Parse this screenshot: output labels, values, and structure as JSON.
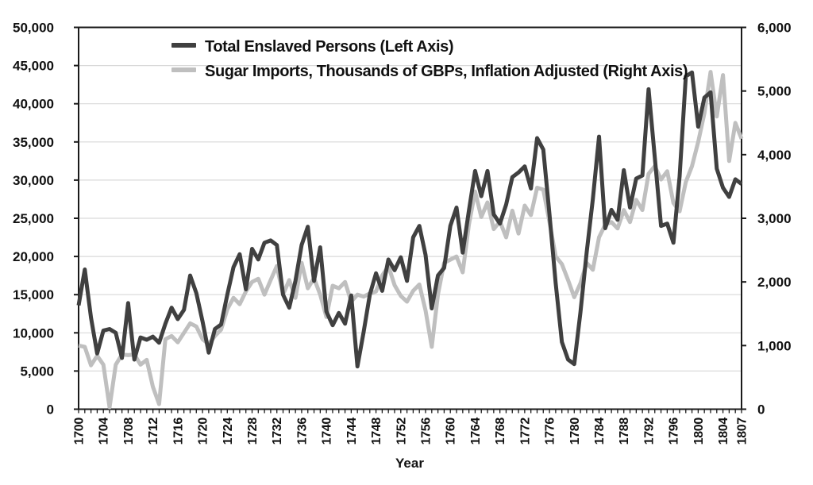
{
  "chart_data": {
    "type": "line",
    "title": "",
    "xlabel": "Year",
    "x_start": 1700,
    "x_end": 1807,
    "x_tick_labels": [
      "1700",
      "1704",
      "1708",
      "1712",
      "1716",
      "1720",
      "1724",
      "1728",
      "1732",
      "1736",
      "1740",
      "1744",
      "1748",
      "1752",
      "1756",
      "1760",
      "1764",
      "1768",
      "1772",
      "1776",
      "1780",
      "1784",
      "1788",
      "1792",
      "1796",
      "1800",
      "1804",
      "1807"
    ],
    "grid": true,
    "legend_position": "top-left-inside",
    "left_axis": {
      "min": 0,
      "max": 50000,
      "tick_step": 5000,
      "tick_labels_top_to_bottom": [
        "50,000",
        "45,000",
        "40,000",
        "35,000",
        "30,000",
        "25,000",
        "20,000",
        "15,000",
        "10,000",
        "5,000",
        "0"
      ]
    },
    "right_axis": {
      "min": 0,
      "max": 6000,
      "tick_step": 1000,
      "tick_labels_top_to_bottom": [
        "6,000",
        "5,000",
        "4,000",
        "3,000",
        "2,000",
        "1,000",
        "0"
      ]
    },
    "series": [
      {
        "name": "Total Enslaved Persons (Left Axis)",
        "axis": "left",
        "color": "#404040",
        "stroke_width": 5,
        "values": [
          13600,
          18300,
          12000,
          7300,
          10300,
          10500,
          10000,
          6700,
          13900,
          6500,
          9400,
          9100,
          9500,
          8700,
          11200,
          13300,
          11800,
          13000,
          17500,
          15200,
          11500,
          7400,
          10500,
          11100,
          15000,
          18600,
          20300,
          15700,
          21000,
          19600,
          21800,
          22100,
          21500,
          15000,
          13300,
          16800,
          21500,
          23900,
          16800,
          21200,
          12800,
          11000,
          12600,
          11200,
          14900,
          5600,
          10100,
          15000,
          17800,
          15500,
          19600,
          18200,
          19900,
          16800,
          22500,
          24000,
          20200,
          13200,
          17500,
          18500,
          24000,
          26400,
          20500,
          26000,
          31200,
          27900,
          31200,
          25500,
          24300,
          26800,
          30400,
          31000,
          31800,
          28900,
          35500,
          34000,
          25500,
          16500,
          8800,
          6500,
          5900,
          12700,
          20500,
          27500,
          35700,
          23700,
          26100,
          24800,
          31300,
          26400,
          30200,
          30600,
          41900,
          33000,
          24000,
          24300,
          21800,
          30500,
          43600,
          44100,
          37000,
          40800,
          41500,
          31500,
          29000,
          27800,
          30100,
          29500
        ]
      },
      {
        "name": "Sugar Imports, Thousands of GBPs, Inflation Adjusted (Right Axis)",
        "axis": "right",
        "color": "#bfbfbf",
        "stroke_width": 5,
        "values": [
          1000,
          980,
          690,
          840,
          700,
          30,
          700,
          860,
          850,
          860,
          700,
          775,
          350,
          80,
          1100,
          1150,
          1050,
          1200,
          1350,
          1300,
          1100,
          1020,
          1150,
          1250,
          1570,
          1750,
          1650,
          1850,
          2000,
          2050,
          1800,
          2030,
          2250,
          1800,
          2030,
          1750,
          2300,
          1900,
          2060,
          1800,
          1450,
          1940,
          1900,
          2000,
          1690,
          1800,
          1770,
          1820,
          1850,
          2100,
          2250,
          1950,
          1780,
          1690,
          1860,
          1960,
          1550,
          980,
          1800,
          2300,
          2350,
          2400,
          2150,
          2900,
          3420,
          3020,
          3250,
          2830,
          2950,
          2700,
          3120,
          2760,
          3200,
          3050,
          3480,
          3450,
          2940,
          2400,
          2280,
          2030,
          1760,
          1980,
          2300,
          2190,
          2700,
          2900,
          2940,
          2840,
          3130,
          2940,
          3290,
          3130,
          3700,
          3820,
          3610,
          3740,
          3240,
          3110,
          3570,
          3820,
          4200,
          4650,
          5300,
          4600,
          5250,
          3900,
          4500,
          4250
        ]
      }
    ],
    "colors": {
      "frame": "#1a1a1a",
      "gridline": "#d9d9d9",
      "text": "#111111"
    }
  },
  "legend": {
    "items": [
      {
        "label": "Total Enslaved Persons (Left Axis)"
      },
      {
        "label": "Sugar Imports, Thousands of GBPs, Inflation Adjusted (Right Axis)"
      }
    ]
  }
}
